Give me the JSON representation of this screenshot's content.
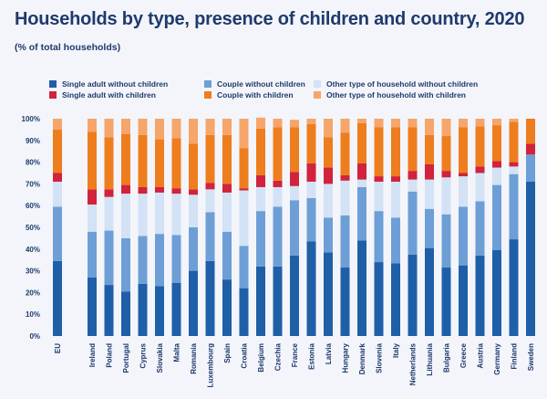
{
  "chart_data": {
    "type": "bar",
    "stacked": true,
    "title": "Households by type, presence of children and country, 2020",
    "subtitle": "(% of total households)",
    "ylim": [
      0,
      100
    ],
    "yticks": [
      "0%",
      "10%",
      "20%",
      "30%",
      "40%",
      "50%",
      "60%",
      "70%",
      "80%",
      "90%",
      "100%"
    ],
    "legend_position": "top",
    "categories": [
      "EU",
      "Ireland",
      "Poland",
      "Portugal",
      "Cyprus",
      "Slovakia",
      "Malta",
      "Romania",
      "Luxembourg",
      "Spain",
      "Croatia",
      "Belgium",
      "Czechia",
      "France",
      "Estonia",
      "Latvia",
      "Hungary",
      "Denmark",
      "Slovenia",
      "Italy",
      "Netherlands",
      "Lithuania",
      "Bulgaria",
      "Greece",
      "Austria",
      "Germany",
      "Finland",
      "Sweden"
    ],
    "series": [
      {
        "name": "Single adult without children",
        "color": "#1f5fa8",
        "values": [
          34.5,
          27,
          23.5,
          20.5,
          24,
          23,
          24.5,
          30,
          34.5,
          26,
          22,
          32,
          32,
          37,
          43.5,
          38.5,
          31.5,
          44,
          34,
          33.5,
          37.5,
          40.5,
          31.5,
          32.5,
          37,
          39.5,
          44.5,
          71
        ]
      },
      {
        "name": "Couple without children",
        "color": "#6d9fd6",
        "values": [
          25,
          21,
          25,
          24.5,
          22,
          24,
          22,
          20,
          22.5,
          22,
          19.5,
          25.5,
          27.5,
          25.5,
          20,
          16,
          24,
          24.5,
          23.5,
          21,
          29,
          18,
          24.5,
          27,
          25,
          30,
          30,
          12.5
        ]
      },
      {
        "name": "Other type of household without children",
        "color": "#d3e2f5",
        "values": [
          11.5,
          12.5,
          15.5,
          20.5,
          19.5,
          19,
          19,
          15,
          10.5,
          18,
          25.5,
          11,
          9,
          6.5,
          7.5,
          15.5,
          16,
          3.5,
          13.5,
          16.5,
          5.5,
          13.5,
          17,
          14,
          13,
          8,
          3.5,
          0
        ]
      },
      {
        "name": "Single adult with children",
        "color": "#d1233b",
        "values": [
          4,
          7,
          3.5,
          4,
          3,
          2.5,
          2.5,
          2.5,
          3,
          4,
          1,
          5.5,
          3,
          6.5,
          8.5,
          7.5,
          2.5,
          7.5,
          2.5,
          2.5,
          4,
          7,
          3,
          1.5,
          3,
          3,
          2,
          5
        ]
      },
      {
        "name": "Couple with children",
        "color": "#ee7d1e",
        "values": [
          20,
          26.5,
          24,
          23.5,
          24,
          22,
          23,
          21,
          22,
          22.5,
          18.5,
          21.5,
          24.5,
          20.5,
          18,
          14,
          19.5,
          18.5,
          22.5,
          22.5,
          20,
          13.5,
          16,
          21,
          18.5,
          16.5,
          18.5,
          11.5
        ]
      },
      {
        "name": "Other type of household with children",
        "color": "#f6a56b",
        "values": [
          5,
          6,
          8.5,
          7,
          7.5,
          9.5,
          9,
          11.5,
          7.5,
          7.5,
          13.5,
          5,
          4,
          3.5,
          2.5,
          8.5,
          6.5,
          2,
          4,
          4,
          4,
          7.5,
          8,
          4,
          3.5,
          3,
          1.5,
          0
        ]
      }
    ]
  }
}
